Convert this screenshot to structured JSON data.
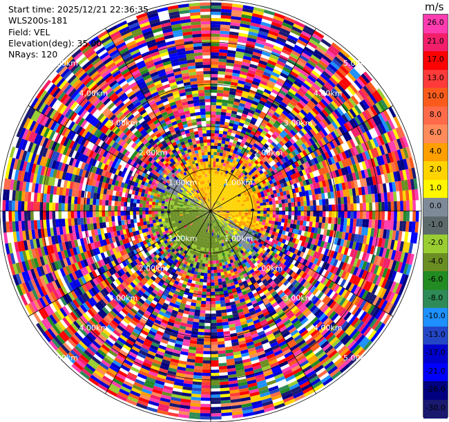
{
  "header": {
    "start_time": "Start time: 2025/12/21 22:36:35",
    "instrument": "WLS200s-181",
    "field": "Field: VEL",
    "elevation": "Elevation(deg): 35.00",
    "nrays": "NRays: 120"
  },
  "chart_data": {
    "type": "heatmap",
    "projection": "polar PPI",
    "field": "VEL",
    "units": "m/s",
    "range_ring_labels": [
      "1.00km",
      "2.00km",
      "3.00km",
      "4.00km",
      "5.00km"
    ],
    "range_rings_km": [
      1,
      2,
      3,
      4,
      5
    ],
    "max_range_km": 5.0,
    "n_rays": 120,
    "elevation_deg": 35.0,
    "colorbar": {
      "unit_label": "m/s",
      "tick_labels": [
        "26.0",
        "21.0",
        "17.0",
        "13.0",
        "10.0",
        "8.0",
        "6.0",
        "4.0",
        "2.0",
        "1.0",
        "0.0",
        "-1.0",
        "-2.0",
        "-4.0",
        "-6.0",
        "-8.0",
        "-10.0",
        "-13.0",
        "-17.0",
        "-21.0",
        "-26.0",
        "-30.0"
      ],
      "colors": [
        "#ff3db0",
        "#f31f6a",
        "#fb0303",
        "#ff3a3a",
        "#fa5b1c",
        "#fe6a4a",
        "#ff8a5a",
        "#ff9f00",
        "#ffd300",
        "#fff600",
        "#7f8a99",
        "#5d6a6b",
        "#9acd32",
        "#6b8e23",
        "#228b22",
        "#2e8b57",
        "#1e90ff",
        "#2346c7",
        "#0000cd",
        "#0000ff",
        "#000080",
        "#191970"
      ]
    },
    "grid": true
  }
}
